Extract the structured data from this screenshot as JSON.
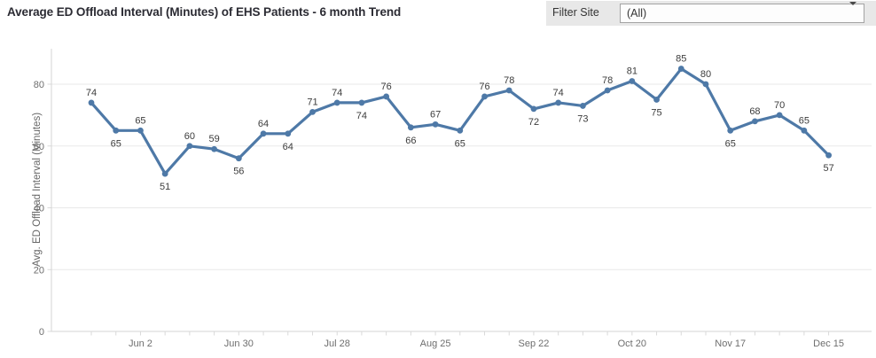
{
  "header": {
    "title": "Average ED Offload Interval (Minutes) of EHS Patients - 6 month Trend",
    "filter": {
      "label": "Filter Site",
      "value": "(All)",
      "icon": "caret-down-icon"
    }
  },
  "chart_data": {
    "type": "line",
    "ylabel": "Avg. ED Offload Interval (Minutes)",
    "values": [
      74,
      65,
      65,
      51,
      60,
      59,
      56,
      64,
      64,
      71,
      74,
      74,
      76,
      66,
      67,
      65,
      76,
      78,
      72,
      74,
      73,
      78,
      81,
      75,
      85,
      80,
      65,
      68,
      70,
      65,
      57
    ],
    "point_labels_shown": true,
    "y_ticks": [
      0,
      20,
      40,
      60,
      80
    ],
    "ylim": [
      0,
      92
    ],
    "x_tick_labels": [
      "Jun 2",
      "Jun 30",
      "Jul 28",
      "Aug 25",
      "Sep 22",
      "Oct 20",
      "Nov 17",
      "Dec 15"
    ],
    "x_tick_indices": [
      2,
      6,
      10,
      14,
      18,
      22,
      26,
      30
    ],
    "grid": "horizontal",
    "legend": "none",
    "line_color": "#4e79a7"
  },
  "colors": {
    "accent": "#4e79a7",
    "grid": "#e9e9e9",
    "axis_line": "#d5d5d5",
    "tick_mark": "#d9d9d9",
    "axis_text": "#6e6e6e",
    "point_label_text": "#3c3c3c",
    "filter_bg": "#e8e8e8",
    "title_text": "#2b2b33"
  }
}
